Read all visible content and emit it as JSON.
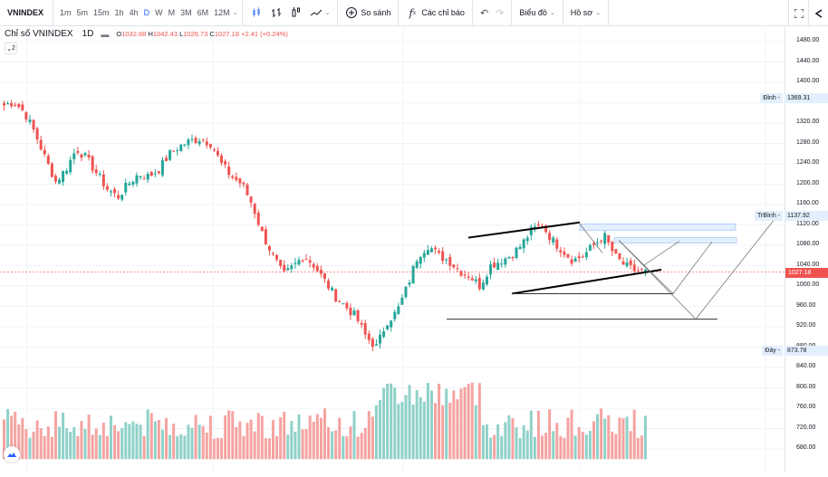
{
  "toolbar": {
    "symbol": "VNINDEX",
    "intervals": [
      "1m",
      "5m",
      "15m",
      "1h",
      "4h",
      "D",
      "W",
      "M",
      "3M",
      "6M",
      "12M"
    ],
    "active_interval": "D",
    "compare_label": "So sánh",
    "indicators_label": "Các chỉ báo",
    "chart_label": "Biểu đồ",
    "profile_label": "Hồ sơ",
    "icons": [
      "candles-icon",
      "bars-icon",
      "hollow-candles-icon",
      "line-icon",
      "plus-circle-icon",
      "function-icon",
      "undo-icon",
      "redo-icon",
      "fullscreen-icon",
      "share-icon"
    ]
  },
  "legend": {
    "title": "Chỉ số VNINDEX",
    "interval": "1D",
    "open_label": "O",
    "open": "1032.68",
    "high_label": "H",
    "high": "1042.43",
    "low_label": "L",
    "low": "1026.73",
    "close_label": "C",
    "close": "1027.18",
    "change": "+2.41 (+0.24%)",
    "collapse_count": "2"
  },
  "price_axis": {
    "ticks": [
      "1480.00",
      "1440.00",
      "1400.00",
      "1360.00",
      "1320.00",
      "1280.00",
      "1240.00",
      "1200.00",
      "1160.00",
      "1120.00",
      "1080.00",
      "1040.00",
      "1000.00",
      "960.00",
      "920.00",
      "880.00",
      "840.00",
      "800.00",
      "760.00",
      "720.00",
      "680.00"
    ],
    "current_price": "1027.18",
    "labels": [
      {
        "name": "Đỉnh",
        "value": "1369.31"
      },
      {
        "name": "TrBình",
        "value": "1137.92"
      },
      {
        "name": "Đáy",
        "value": "873.78"
      }
    ]
  },
  "colors": {
    "up": "#26a69a",
    "down": "#ef5350",
    "up_volume": "#8fd1c8",
    "down_volume": "#f5a3a1",
    "accent": "#2962ff",
    "grid": "#f0f3fa"
  },
  "chart_data": {
    "type": "candlestick",
    "title": "Chỉ số VNINDEX 1D",
    "symbol": "VNINDEX",
    "interval": "1D",
    "last": {
      "open": 1032.68,
      "high": 1042.43,
      "low": 1026.73,
      "close": 1027.18,
      "change": 2.41,
      "change_pct": 0.24
    },
    "ylim": [
      660,
      1500
    ],
    "y_ticks": [
      1480,
      1440,
      1400,
      1360,
      1320,
      1280,
      1240,
      1200,
      1160,
      1120,
      1080,
      1040,
      1000,
      960,
      920,
      880,
      840,
      800,
      760,
      720,
      680
    ],
    "markers": {
      "high": 1369.31,
      "average": 1137.92,
      "low": 873.78
    },
    "approx_close_path": [
      1355,
      1362,
      1340,
      1300,
      1250,
      1205,
      1230,
      1270,
      1250,
      1220,
      1190,
      1175,
      1200,
      1220,
      1215,
      1230,
      1260,
      1275,
      1285,
      1290,
      1280,
      1240,
      1215,
      1200,
      1160,
      1100,
      1060,
      1020,
      1040,
      1060,
      1040,
      1010,
      980,
      960,
      940,
      900,
      880,
      930,
      950,
      1000,
      1060,
      1080,
      1060,
      1050,
      1030,
      1020,
      1000,
      1040,
      1050,
      1060,
      1080,
      1110,
      1120,
      1090,
      1070,
      1050,
      1060,
      1080,
      1100,
      1060,
      1040,
      1030,
      1027
    ],
    "grid": true,
    "volume_series": "bottom histogram, teal=up, pink=down"
  }
}
